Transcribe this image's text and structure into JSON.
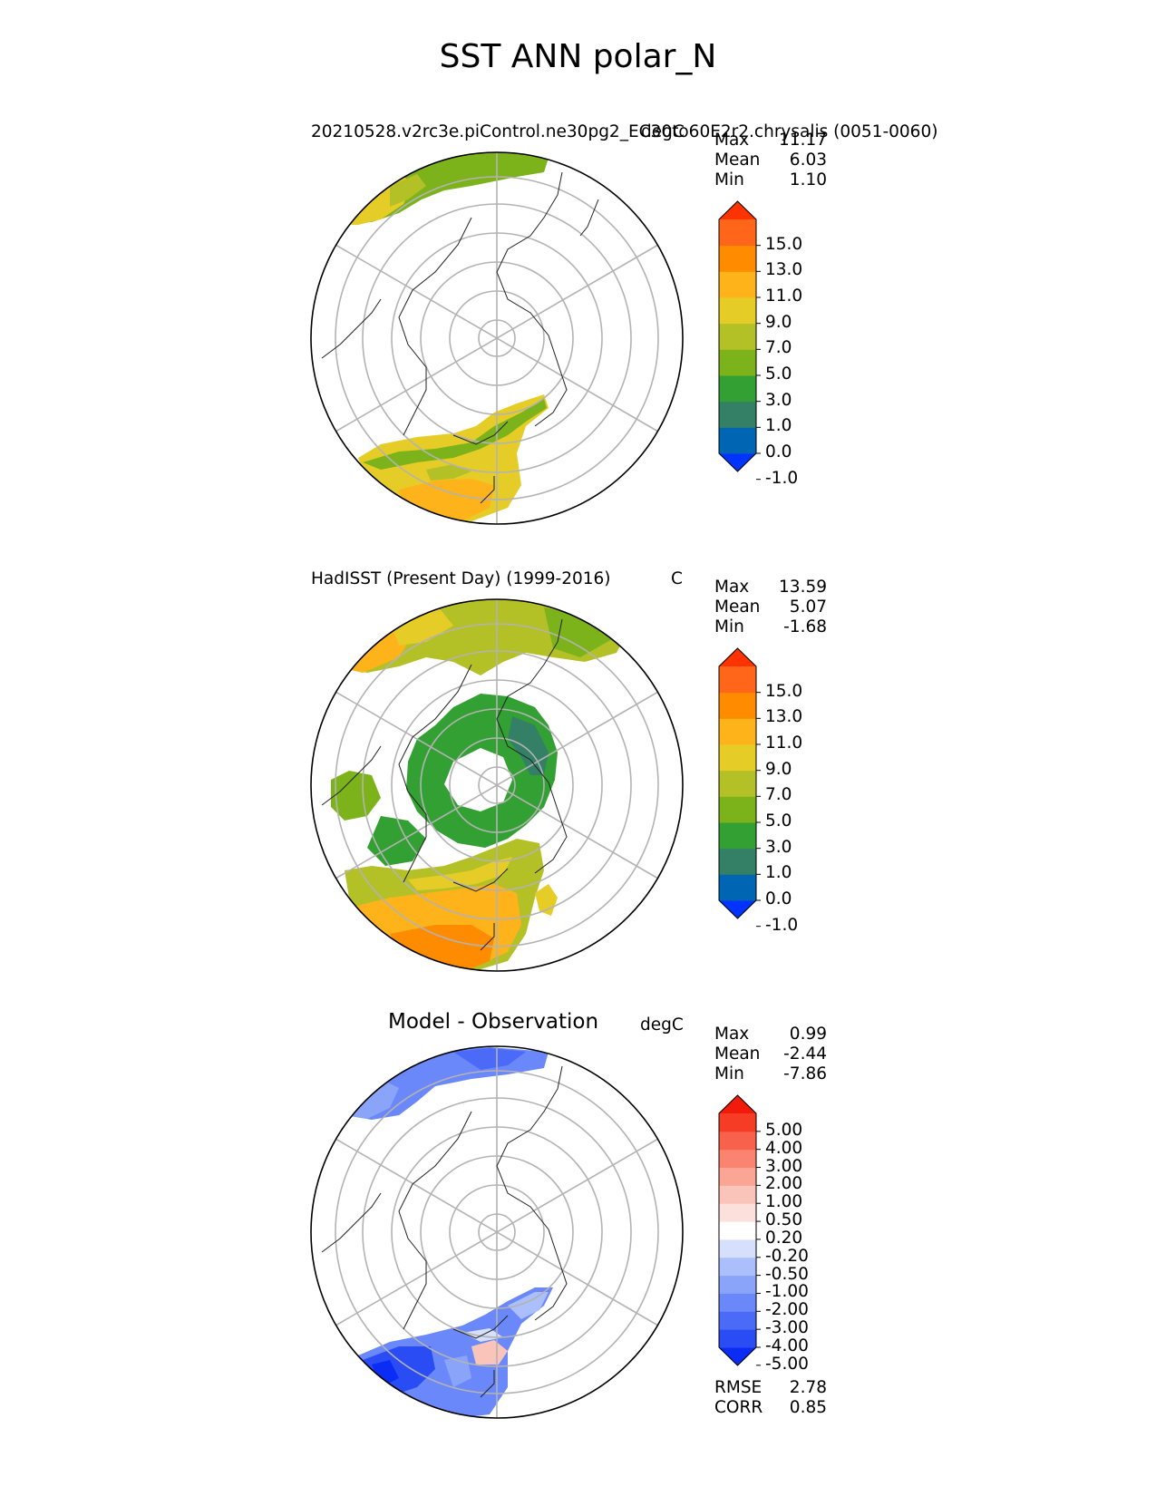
{
  "title": "SST ANN polar_N",
  "panels": [
    {
      "left_title": "20210528.v2rc3e.piControl.ne30pg2_EC30to60E2r2.chrysalis (0051-0060)",
      "right_title": "degC",
      "stats": [
        {
          "label": "Max",
          "value": "11.17"
        },
        {
          "label": "Mean",
          "value": "6.03"
        },
        {
          "label": "Min",
          "value": "1.10"
        }
      ],
      "colorbar": {
        "ticks": [
          "15.0",
          "13.0",
          "11.0",
          "9.0",
          "7.0",
          "5.0",
          "3.0",
          "1.0",
          "0.0",
          "-1.0"
        ],
        "colors": [
          "#0033ff",
          "#0066b3",
          "#338066",
          "#33a033",
          "#7db31a",
          "#b3c026",
          "#e6cc26",
          "#ffb31a",
          "#ff8c00",
          "#ff661a",
          "#ff3300"
        ],
        "extend": "both"
      }
    },
    {
      "left_title": "HadISST (Present Day) (1999-2016)",
      "right_title": "C",
      "stats": [
        {
          "label": "Max",
          "value": "13.59"
        },
        {
          "label": "Mean",
          "value": "5.07"
        },
        {
          "label": "Min",
          "value": "-1.68"
        }
      ],
      "colorbar": {
        "ticks": [
          "15.0",
          "13.0",
          "11.0",
          "9.0",
          "7.0",
          "5.0",
          "3.0",
          "1.0",
          "0.0",
          "-1.0"
        ],
        "colors": [
          "#0033ff",
          "#0066b3",
          "#338066",
          "#33a033",
          "#7db31a",
          "#b3c026",
          "#e6cc26",
          "#ffb31a",
          "#ff8c00",
          "#ff661a",
          "#ff3300"
        ],
        "extend": "both"
      }
    },
    {
      "left_title": "Model - Observation",
      "right_title": "degC",
      "stats": [
        {
          "label": "Max",
          "value": "0.99"
        },
        {
          "label": "Mean",
          "value": "-2.44"
        },
        {
          "label": "Min",
          "value": "-7.86"
        }
      ],
      "colorbar": {
        "ticks": [
          "5.00",
          "4.00",
          "3.00",
          "2.00",
          "1.00",
          "0.50",
          "0.20",
          "-0.20",
          "-0.50",
          "-1.00",
          "-2.00",
          "-3.00",
          "-4.00",
          "-5.00"
        ],
        "colors": [
          "#0a2cf5",
          "#2a4cf5",
          "#4a6af7",
          "#6a88f9",
          "#8aa4fa",
          "#aabffb",
          "#d6dffc",
          "#ffffff",
          "#fce0dc",
          "#fbc4bb",
          "#fba594",
          "#fa8470",
          "#f8614b",
          "#f63c24",
          "#f21a0a"
        ],
        "extend": "both"
      },
      "extra_stats": [
        {
          "label": "RMSE",
          "value": "2.78"
        },
        {
          "label": "CORR",
          "value": "0.85"
        }
      ]
    }
  ],
  "chart_data": [
    {
      "type": "heatmap",
      "projection": "north polar stereographic",
      "title": "20210528.v2rc3e.piControl.ne30pg2_EC30to60E2r2.chrysalis (0051-0060)",
      "units": "degC",
      "levels": [
        -1.0,
        0.0,
        1.0,
        3.0,
        5.0,
        7.0,
        9.0,
        11.0,
        13.0,
        15.0
      ],
      "max": 11.17,
      "mean": 6.03,
      "min": 1.1
    },
    {
      "type": "heatmap",
      "projection": "north polar stereographic",
      "title": "HadISST (Present Day) (1999-2016)",
      "units": "C",
      "levels": [
        -1.0,
        0.0,
        1.0,
        3.0,
        5.0,
        7.0,
        9.0,
        11.0,
        13.0,
        15.0
      ],
      "max": 13.59,
      "mean": 5.07,
      "min": -1.68
    },
    {
      "type": "heatmap",
      "projection": "north polar stereographic",
      "title": "Model - Observation",
      "units": "degC",
      "levels": [
        -5.0,
        -4.0,
        -3.0,
        -2.0,
        -1.0,
        -0.5,
        -0.2,
        0.2,
        0.5,
        1.0,
        2.0,
        3.0,
        4.0,
        5.0
      ],
      "max": 0.99,
      "mean": -2.44,
      "min": -7.86,
      "rmse": 2.78,
      "corr": 0.85
    }
  ]
}
